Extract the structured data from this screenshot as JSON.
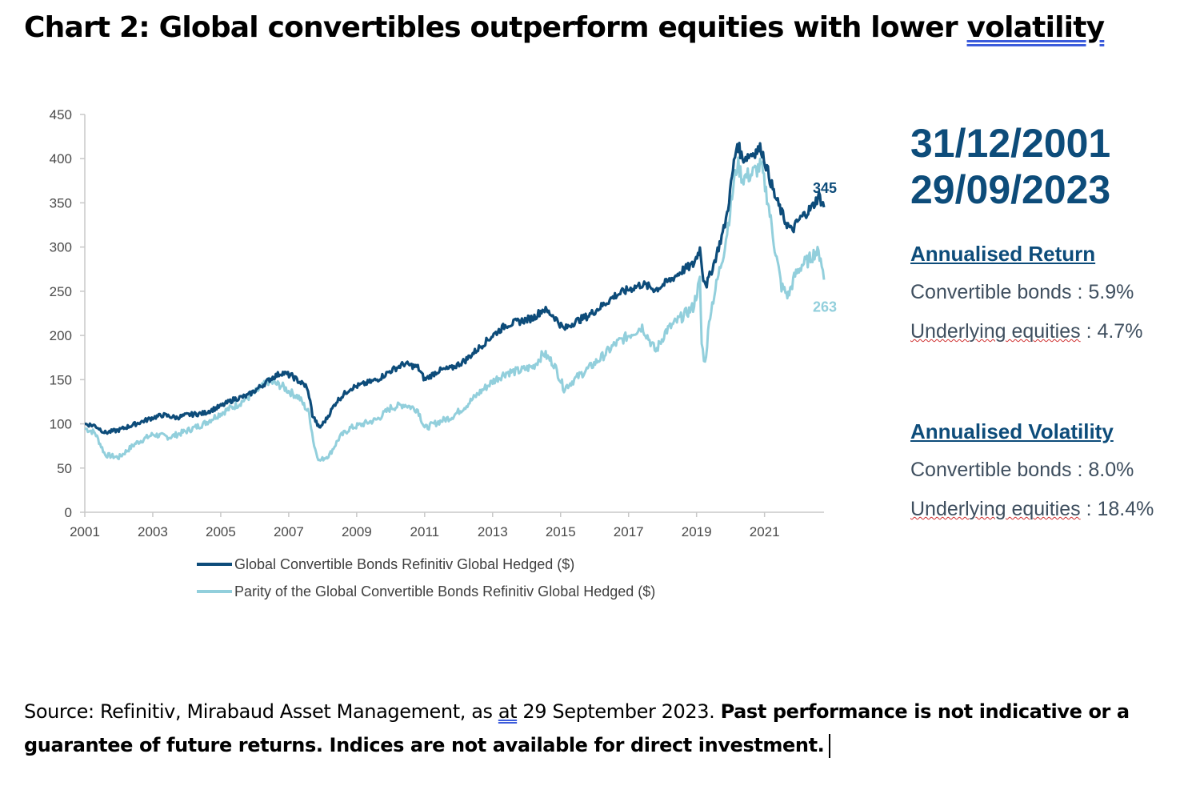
{
  "title": {
    "prefix": "Chart 2: Global convertibles outperform equities with lower ",
    "underlined": "volatility"
  },
  "side": {
    "date_start": "31/12/2001",
    "date_end": "29/09/2023",
    "return_heading": "Annualised Return",
    "return_cb_label": "Convertible bonds",
    "return_cb_value": " : 5.9%",
    "return_eq_label": "Underlying equities",
    "return_eq_value": " : 4.7%",
    "vol_heading": "Annualised Volatility",
    "vol_cb_label": "Convertible bonds",
    "vol_cb_value": " : 8.0%",
    "vol_eq_label": "Underlying equities",
    "vol_eq_value": " : 18.4%"
  },
  "source": {
    "part1": "Source: Refinitiv, Mirabaud Asset Management, as ",
    "at": "at",
    "part2": " 29 September 2023. ",
    "bold": "Past performance is not indicative or a guarantee of future returns. Indices are not available for direct investment."
  },
  "colors": {
    "dark_series": "#0d4c7a",
    "light_series": "#92cfdc",
    "axis": "#c8c8c8"
  },
  "chart_data": {
    "type": "line",
    "title": "Chart 2: Global convertibles outperform equities with lower volatility",
    "xlabel": "",
    "ylabel": "",
    "xlim": [
      2001,
      2022.75
    ],
    "ylim": [
      0,
      450
    ],
    "x_ticks": [
      "2001",
      "2003",
      "2005",
      "2007",
      "2009",
      "2011",
      "2013",
      "2015",
      "2017",
      "2019",
      "2021"
    ],
    "y_ticks": [
      0,
      50,
      100,
      150,
      200,
      250,
      300,
      350,
      400,
      450
    ],
    "grid": false,
    "legend_position": "bottom",
    "series": [
      {
        "name": "Global Convertible Bonds Refinitiv Global Hedged ($)",
        "color": "#0d4c7a",
        "end_label": "345",
        "points": [
          [
            2001.0,
            100
          ],
          [
            2001.3,
            98
          ],
          [
            2001.6,
            90
          ],
          [
            2002.0,
            93
          ],
          [
            2002.5,
            100
          ],
          [
            2003.0,
            107
          ],
          [
            2003.3,
            110
          ],
          [
            2003.7,
            107
          ],
          [
            2004.0,
            110
          ],
          [
            2004.5,
            112
          ],
          [
            2005.0,
            120
          ],
          [
            2005.4,
            128
          ],
          [
            2005.8,
            132
          ],
          [
            2006.2,
            143
          ],
          [
            2006.5,
            152
          ],
          [
            2006.8,
            158
          ],
          [
            2007.1,
            154
          ],
          [
            2007.3,
            148
          ],
          [
            2007.5,
            143
          ],
          [
            2007.6,
            132
          ],
          [
            2007.7,
            110
          ],
          [
            2007.9,
            95
          ],
          [
            2008.1,
            105
          ],
          [
            2008.4,
            125
          ],
          [
            2008.8,
            140
          ],
          [
            2009.2,
            145
          ],
          [
            2009.6,
            150
          ],
          [
            2010.0,
            160
          ],
          [
            2010.4,
            168
          ],
          [
            2010.8,
            164
          ],
          [
            2011.0,
            150
          ],
          [
            2011.4,
            160
          ],
          [
            2011.8,
            163
          ],
          [
            2012.2,
            172
          ],
          [
            2012.6,
            186
          ],
          [
            2013.0,
            200
          ],
          [
            2013.4,
            212
          ],
          [
            2013.8,
            216
          ],
          [
            2014.2,
            220
          ],
          [
            2014.5,
            230
          ],
          [
            2014.8,
            222
          ],
          [
            2015.1,
            207
          ],
          [
            2015.4,
            215
          ],
          [
            2015.8,
            222
          ],
          [
            2016.2,
            233
          ],
          [
            2016.6,
            245
          ],
          [
            2017.0,
            252
          ],
          [
            2017.4,
            258
          ],
          [
            2017.8,
            252
          ],
          [
            2018.2,
            262
          ],
          [
            2018.6,
            274
          ],
          [
            2018.9,
            280
          ],
          [
            2019.1,
            298
          ],
          [
            2019.2,
            265
          ],
          [
            2019.3,
            258
          ],
          [
            2019.5,
            280
          ],
          [
            2019.8,
            320
          ],
          [
            2019.9,
            338
          ],
          [
            2020.1,
            395
          ],
          [
            2020.2,
            418
          ],
          [
            2020.35,
            400
          ],
          [
            2020.6,
            405
          ],
          [
            2020.9,
            412
          ],
          [
            2021.1,
            385
          ],
          [
            2021.3,
            358
          ],
          [
            2021.6,
            330
          ],
          [
            2021.8,
            318
          ],
          [
            2022.0,
            330
          ],
          [
            2022.2,
            338
          ],
          [
            2022.4,
            345
          ],
          [
            2022.6,
            358
          ],
          [
            2022.75,
            345
          ]
        ]
      },
      {
        "name": "Parity of the Global Convertible Bonds Refinitiv Global Hedged ($)",
        "color": "#92cfdc",
        "end_label": "263",
        "points": [
          [
            2001.0,
            95
          ],
          [
            2001.3,
            90
          ],
          [
            2001.6,
            65
          ],
          [
            2002.0,
            62
          ],
          [
            2002.5,
            78
          ],
          [
            2003.0,
            88
          ],
          [
            2003.5,
            85
          ],
          [
            2004.0,
            92
          ],
          [
            2004.5,
            100
          ],
          [
            2005.0,
            112
          ],
          [
            2005.5,
            122
          ],
          [
            2006.0,
            135
          ],
          [
            2006.4,
            148
          ],
          [
            2006.8,
            143
          ],
          [
            2007.0,
            137
          ],
          [
            2007.3,
            130
          ],
          [
            2007.6,
            112
          ],
          [
            2007.75,
            75
          ],
          [
            2007.9,
            58
          ],
          [
            2008.2,
            65
          ],
          [
            2008.5,
            85
          ],
          [
            2008.8,
            95
          ],
          [
            2009.2,
            100
          ],
          [
            2009.6,
            105
          ],
          [
            2010.0,
            118
          ],
          [
            2010.4,
            122
          ],
          [
            2010.8,
            116
          ],
          [
            2011.0,
            95
          ],
          [
            2011.4,
            102
          ],
          [
            2011.8,
            108
          ],
          [
            2012.2,
            120
          ],
          [
            2012.6,
            135
          ],
          [
            2013.0,
            148
          ],
          [
            2013.4,
            158
          ],
          [
            2013.8,
            160
          ],
          [
            2014.2,
            165
          ],
          [
            2014.5,
            180
          ],
          [
            2014.8,
            168
          ],
          [
            2015.1,
            140
          ],
          [
            2015.4,
            150
          ],
          [
            2015.8,
            162
          ],
          [
            2016.2,
            175
          ],
          [
            2016.6,
            190
          ],
          [
            2017.0,
            200
          ],
          [
            2017.4,
            210
          ],
          [
            2017.8,
            182
          ],
          [
            2018.1,
            205
          ],
          [
            2018.6,
            222
          ],
          [
            2018.9,
            232
          ],
          [
            2019.1,
            262
          ],
          [
            2019.15,
            190
          ],
          [
            2019.25,
            168
          ],
          [
            2019.4,
            225
          ],
          [
            2019.8,
            295
          ],
          [
            2019.9,
            318
          ],
          [
            2020.1,
            372
          ],
          [
            2020.2,
            395
          ],
          [
            2020.35,
            378
          ],
          [
            2020.6,
            382
          ],
          [
            2020.9,
            392
          ],
          [
            2021.1,
            352
          ],
          [
            2021.3,
            300
          ],
          [
            2021.5,
            255
          ],
          [
            2021.7,
            245
          ],
          [
            2021.9,
            268
          ],
          [
            2022.1,
            280
          ],
          [
            2022.3,
            285
          ],
          [
            2022.5,
            295
          ],
          [
            2022.65,
            290
          ],
          [
            2022.75,
            263
          ]
        ]
      }
    ]
  }
}
